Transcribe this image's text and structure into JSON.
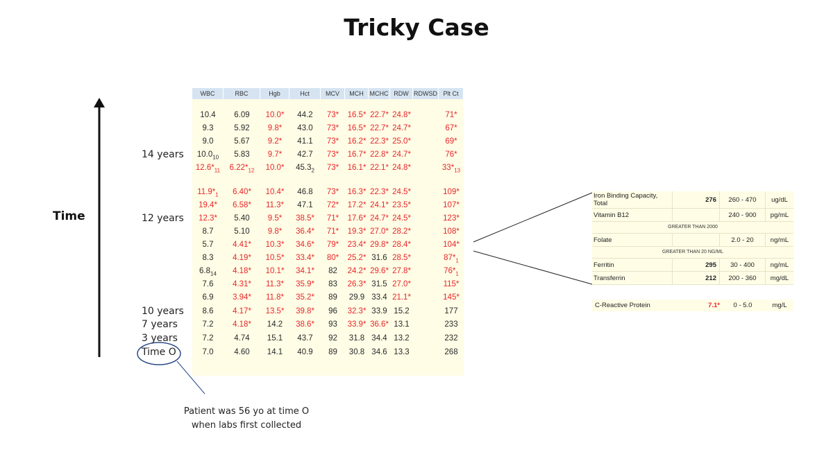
{
  "title": "Tricky Case",
  "axis_label": "Time",
  "time_labels": [
    {
      "text": "14 years",
      "row": 3
    },
    {
      "text": "12 years",
      "row": 8
    },
    {
      "text": "10 years",
      "row": 15
    },
    {
      "text": "7 years",
      "row": 16
    },
    {
      "text": "3 years",
      "row": 17
    },
    {
      "text": "Time O",
      "row": 18
    }
  ],
  "lab_headers": [
    "WBC",
    "RBC",
    "Hgb",
    "Hct",
    "MCV",
    "MCH",
    "MCHC",
    "RDW",
    "RDWSD",
    "Plt Ct"
  ],
  "lab_rows": [
    [
      {
        "v": "10.4"
      },
      {
        "v": "6.09"
      },
      {
        "v": "10.0*",
        "a": 1
      },
      {
        "v": "44.2"
      },
      {
        "v": "73*",
        "a": 1
      },
      {
        "v": "16.5*",
        "a": 1
      },
      {
        "v": "22.7*",
        "a": 1
      },
      {
        "v": "24.8*",
        "a": 1
      },
      {
        "v": ""
      },
      {
        "v": "71*",
        "a": 1
      }
    ],
    [
      {
        "v": "9.3"
      },
      {
        "v": "5.92"
      },
      {
        "v": "9.8*",
        "a": 1
      },
      {
        "v": "43.0"
      },
      {
        "v": "73*",
        "a": 1
      },
      {
        "v": "16.5*",
        "a": 1
      },
      {
        "v": "22.7*",
        "a": 1
      },
      {
        "v": "24.7*",
        "a": 1
      },
      {
        "v": ""
      },
      {
        "v": "67*",
        "a": 1
      }
    ],
    [
      {
        "v": "9.0"
      },
      {
        "v": "5.67"
      },
      {
        "v": "9.2*",
        "a": 1
      },
      {
        "v": "41.1"
      },
      {
        "v": "73*",
        "a": 1
      },
      {
        "v": "16.2*",
        "a": 1
      },
      {
        "v": "22.3*",
        "a": 1
      },
      {
        "v": "25.0*",
        "a": 1
      },
      {
        "v": ""
      },
      {
        "v": "69*",
        "a": 1
      }
    ],
    [
      {
        "v": "10.0",
        "s": "10"
      },
      {
        "v": "5.83"
      },
      {
        "v": "9.7*",
        "a": 1
      },
      {
        "v": "42.7"
      },
      {
        "v": "73*",
        "a": 1
      },
      {
        "v": "16.7*",
        "a": 1
      },
      {
        "v": "22.8*",
        "a": 1
      },
      {
        "v": "24.7*",
        "a": 1
      },
      {
        "v": ""
      },
      {
        "v": "76*",
        "a": 1
      }
    ],
    [
      {
        "v": "12.6*",
        "a": 1,
        "s": "11"
      },
      {
        "v": "6.22*",
        "a": 1,
        "s": "12"
      },
      {
        "v": "10.0*",
        "a": 1
      },
      {
        "v": "45.3",
        "s": "2"
      },
      {
        "v": "73*",
        "a": 1
      },
      {
        "v": "16.1*",
        "a": 1
      },
      {
        "v": "22.1*",
        "a": 1
      },
      {
        "v": "24.8*",
        "a": 1
      },
      {
        "v": ""
      },
      {
        "v": "33*",
        "a": 1,
        "s": "13"
      }
    ],
    null,
    [
      {
        "v": "11.9*",
        "a": 1,
        "s": "1"
      },
      {
        "v": "6.40*",
        "a": 1
      },
      {
        "v": "10.4*",
        "a": 1
      },
      {
        "v": "46.8"
      },
      {
        "v": "73*",
        "a": 1
      },
      {
        "v": "16.3*",
        "a": 1
      },
      {
        "v": "22.3*",
        "a": 1
      },
      {
        "v": "24.5*",
        "a": 1
      },
      {
        "v": ""
      },
      {
        "v": "109*",
        "a": 1
      }
    ],
    [
      {
        "v": "19.4*",
        "a": 1
      },
      {
        "v": "6.58*",
        "a": 1
      },
      {
        "v": "11.3*",
        "a": 1
      },
      {
        "v": "47.1"
      },
      {
        "v": "72*",
        "a": 1
      },
      {
        "v": "17.2*",
        "a": 1
      },
      {
        "v": "24.1*",
        "a": 1
      },
      {
        "v": "23.5*",
        "a": 1
      },
      {
        "v": ""
      },
      {
        "v": "107*",
        "a": 1
      }
    ],
    [
      {
        "v": "12.3*",
        "a": 1
      },
      {
        "v": "5.40"
      },
      {
        "v": "9.5*",
        "a": 1
      },
      {
        "v": "38.5*",
        "a": 1
      },
      {
        "v": "71*",
        "a": 1
      },
      {
        "v": "17.6*",
        "a": 1
      },
      {
        "v": "24.7*",
        "a": 1
      },
      {
        "v": "24.5*",
        "a": 1
      },
      {
        "v": ""
      },
      {
        "v": "123*",
        "a": 1
      }
    ],
    [
      {
        "v": "8.7"
      },
      {
        "v": "5.10"
      },
      {
        "v": "9.8*",
        "a": 1
      },
      {
        "v": "36.4*",
        "a": 1
      },
      {
        "v": "71*",
        "a": 1
      },
      {
        "v": "19.3*",
        "a": 1
      },
      {
        "v": "27.0*",
        "a": 1
      },
      {
        "v": "28.2*",
        "a": 1
      },
      {
        "v": ""
      },
      {
        "v": "108*",
        "a": 1
      }
    ],
    [
      {
        "v": "5.7"
      },
      {
        "v": "4.41*",
        "a": 1
      },
      {
        "v": "10.3*",
        "a": 1
      },
      {
        "v": "34.6*",
        "a": 1
      },
      {
        "v": "79*",
        "a": 1
      },
      {
        "v": "23.4*",
        "a": 1
      },
      {
        "v": "29.8*",
        "a": 1
      },
      {
        "v": "28.4*",
        "a": 1
      },
      {
        "v": ""
      },
      {
        "v": "104*",
        "a": 1
      }
    ],
    [
      {
        "v": "8.3"
      },
      {
        "v": "4.19*",
        "a": 1
      },
      {
        "v": "10.5*",
        "a": 1
      },
      {
        "v": "33.4*",
        "a": 1
      },
      {
        "v": "80*",
        "a": 1
      },
      {
        "v": "25.2*",
        "a": 1
      },
      {
        "v": "31.6"
      },
      {
        "v": "28.5*",
        "a": 1
      },
      {
        "v": ""
      },
      {
        "v": "87*",
        "a": 1,
        "s": "1"
      }
    ],
    [
      {
        "v": "6.8",
        "s": "14"
      },
      {
        "v": "4.18*",
        "a": 1
      },
      {
        "v": "10.1*",
        "a": 1
      },
      {
        "v": "34.1*",
        "a": 1
      },
      {
        "v": "82"
      },
      {
        "v": "24.2*",
        "a": 1
      },
      {
        "v": "29.6*",
        "a": 1
      },
      {
        "v": "27.8*",
        "a": 1
      },
      {
        "v": ""
      },
      {
        "v": "76*",
        "a": 1,
        "s": "1"
      }
    ],
    [
      {
        "v": "7.6"
      },
      {
        "v": "4.31*",
        "a": 1
      },
      {
        "v": "11.3*",
        "a": 1
      },
      {
        "v": "35.9*",
        "a": 1
      },
      {
        "v": "83"
      },
      {
        "v": "26.3*",
        "a": 1
      },
      {
        "v": "31.5"
      },
      {
        "v": "27.0*",
        "a": 1
      },
      {
        "v": ""
      },
      {
        "v": "115*",
        "a": 1
      }
    ],
    [
      {
        "v": "6.9"
      },
      {
        "v": "3.94*",
        "a": 1
      },
      {
        "v": "11.8*",
        "a": 1
      },
      {
        "v": "35.2*",
        "a": 1
      },
      {
        "v": "89"
      },
      {
        "v": "29.9"
      },
      {
        "v": "33.4"
      },
      {
        "v": "21.1*",
        "a": 1
      },
      {
        "v": ""
      },
      {
        "v": "145*",
        "a": 1
      }
    ],
    [
      {
        "v": "8.6"
      },
      {
        "v": "4.17*",
        "a": 1
      },
      {
        "v": "13.5*",
        "a": 1
      },
      {
        "v": "39.8*",
        "a": 1
      },
      {
        "v": "96"
      },
      {
        "v": "32.3*",
        "a": 1
      },
      {
        "v": "33.9"
      },
      {
        "v": "15.2"
      },
      {
        "v": ""
      },
      {
        "v": "177"
      }
    ],
    [
      {
        "v": "7.2"
      },
      {
        "v": "4.18*",
        "a": 1
      },
      {
        "v": "14.2"
      },
      {
        "v": "38.6*",
        "a": 1
      },
      {
        "v": "93"
      },
      {
        "v": "33.9*",
        "a": 1
      },
      {
        "v": "36.6*",
        "a": 1
      },
      {
        "v": "13.1"
      },
      {
        "v": ""
      },
      {
        "v": "233"
      }
    ],
    [
      {
        "v": "7.2"
      },
      {
        "v": "4.74"
      },
      {
        "v": "15.1"
      },
      {
        "v": "43.7"
      },
      {
        "v": "92"
      },
      {
        "v": "31.8"
      },
      {
        "v": "34.4"
      },
      {
        "v": "13.2"
      },
      {
        "v": ""
      },
      {
        "v": "232"
      }
    ],
    [
      {
        "v": "7.0"
      },
      {
        "v": "4.60"
      },
      {
        "v": "14.1"
      },
      {
        "v": "40.9"
      },
      {
        "v": "89"
      },
      {
        "v": "30.8"
      },
      {
        "v": "34.6"
      },
      {
        "v": "13.3"
      },
      {
        "v": ""
      },
      {
        "v": "268"
      }
    ]
  ],
  "iron_panel": {
    "rows": [
      {
        "name": "Iron Binding Capacity, Total",
        "value": "276",
        "range": "260 - 470",
        "unit": "ug/dL"
      },
      {
        "name": "Vitamin B12",
        "value": "",
        "range": "240 - 900",
        "unit": "pg/mL"
      },
      {
        "note": "GREATER THAN 2000"
      },
      {
        "name": "Folate",
        "value": "",
        "range": "2.0 - 20",
        "unit": "ng/mL"
      },
      {
        "note": "GREATER THAN 20 NG/ML"
      },
      {
        "name": "Ferritin",
        "value": "295",
        "range": "30 - 400",
        "unit": "ng/mL"
      },
      {
        "name": "Transferrin",
        "value": "212",
        "range": "200 - 360",
        "unit": "mg/dL"
      }
    ]
  },
  "crp": {
    "name": "C-Reactive Protein",
    "value": "7.1*",
    "range": "0 - 5.0",
    "unit": "mg/L"
  },
  "annotation": {
    "line1": "Patient was 56 yo at time O",
    "line2": "when labs first collected"
  },
  "colors": {
    "abnormal": "#e8262a",
    "header_bg": "#d6e4f2",
    "panel_bg": "#fffde6"
  }
}
